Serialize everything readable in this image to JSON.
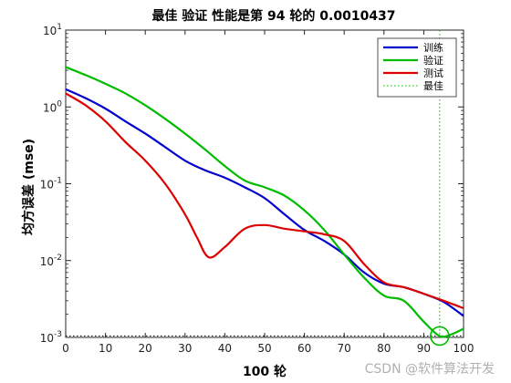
{
  "chart_data": {
    "type": "line",
    "title": "最佳 验证 性能是第 94 轮的 0.0010437",
    "xlabel": "100 轮",
    "ylabel": "均方误差 (mse)",
    "xlim": [
      0,
      100
    ],
    "ylim": [
      0.001,
      10
    ],
    "yscale": "log",
    "xticks": [
      0,
      10,
      20,
      30,
      40,
      50,
      60,
      70,
      80,
      90,
      100
    ],
    "yticks": [
      {
        "value": 0.001,
        "base": "10",
        "exp": "-3"
      },
      {
        "value": 0.01,
        "base": "10",
        "exp": "-2"
      },
      {
        "value": 0.1,
        "base": "10",
        "exp": "-1"
      },
      {
        "value": 1,
        "base": "10",
        "exp": "0"
      },
      {
        "value": 10,
        "base": "10",
        "exp": "1"
      }
    ],
    "grid": false,
    "legend_position": "top-right",
    "series": [
      {
        "name": "训练",
        "color": "#0000cc",
        "x": [
          0,
          5,
          10,
          15,
          20,
          25,
          30,
          35,
          40,
          45,
          50,
          55,
          60,
          65,
          70,
          75,
          80,
          85,
          90,
          95,
          100
        ],
        "y": [
          1.7,
          1.3,
          0.95,
          0.65,
          0.45,
          0.3,
          0.2,
          0.15,
          0.12,
          0.09,
          0.065,
          0.04,
          0.025,
          0.018,
          0.012,
          0.007,
          0.005,
          0.0045,
          0.0037,
          0.0029,
          0.0019
        ]
      },
      {
        "name": "验证",
        "color": "#00bb00",
        "x": [
          0,
          5,
          10,
          15,
          20,
          25,
          30,
          35,
          40,
          45,
          50,
          55,
          60,
          65,
          70,
          75,
          80,
          85,
          90,
          94,
          97,
          100
        ],
        "y": [
          3.3,
          2.6,
          2.0,
          1.5,
          1.05,
          0.7,
          0.45,
          0.28,
          0.17,
          0.11,
          0.09,
          0.07,
          0.045,
          0.025,
          0.012,
          0.006,
          0.0035,
          0.003,
          0.0016,
          0.00104,
          0.0011,
          0.0013
        ]
      },
      {
        "name": "测试",
        "color": "#dd0000",
        "x": [
          0,
          5,
          10,
          15,
          20,
          25,
          30,
          33,
          36,
          40,
          45,
          50,
          55,
          60,
          65,
          70,
          75,
          80,
          85,
          90,
          95,
          100
        ],
        "y": [
          1.5,
          1.05,
          0.65,
          0.35,
          0.2,
          0.1,
          0.04,
          0.02,
          0.011,
          0.015,
          0.026,
          0.029,
          0.026,
          0.024,
          0.022,
          0.018,
          0.009,
          0.0052,
          0.0045,
          0.0037,
          0.003,
          0.0024
        ]
      }
    ],
    "best": {
      "name": "最佳",
      "epoch": 94,
      "value": 0.0010437,
      "color": "#00bb00"
    }
  },
  "watermark": "CSDN @软件算法开发"
}
